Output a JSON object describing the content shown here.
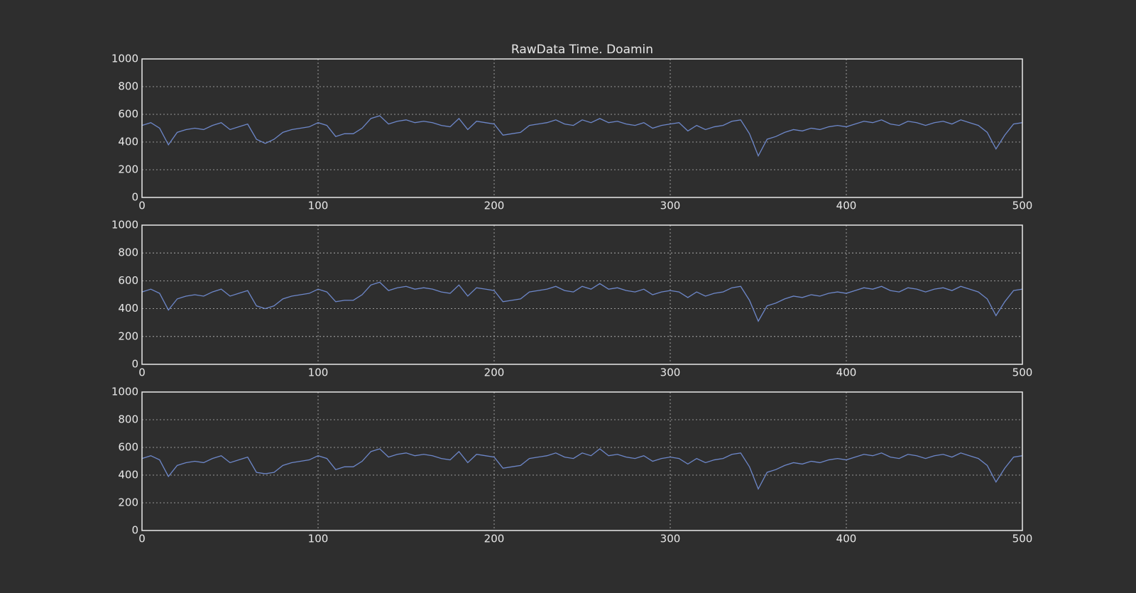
{
  "chart_data": [
    {
      "type": "line",
      "title": "RawData Time. Doamin",
      "color": "#6d87c9",
      "xlim": [
        0,
        500
      ],
      "ylim": [
        0,
        1000
      ],
      "xticks": [
        0,
        100,
        200,
        300,
        400,
        500
      ],
      "yticks": [
        0,
        200,
        400,
        600,
        800,
        1000
      ],
      "grid": true,
      "x": [
        0,
        5,
        10,
        15,
        20,
        25,
        30,
        35,
        40,
        45,
        50,
        55,
        60,
        65,
        70,
        75,
        80,
        85,
        90,
        95,
        100,
        105,
        110,
        115,
        120,
        125,
        130,
        135,
        140,
        145,
        150,
        155,
        160,
        165,
        170,
        175,
        180,
        185,
        190,
        195,
        200,
        205,
        210,
        215,
        220,
        225,
        230,
        235,
        240,
        245,
        250,
        255,
        260,
        265,
        270,
        275,
        280,
        285,
        290,
        295,
        300,
        305,
        310,
        315,
        320,
        325,
        330,
        335,
        340,
        345,
        350,
        355,
        360,
        365,
        370,
        375,
        380,
        385,
        390,
        395,
        400,
        405,
        410,
        415,
        420,
        425,
        430,
        435,
        440,
        445,
        450,
        455,
        460,
        465,
        470,
        475,
        480,
        485,
        490,
        495,
        500
      ],
      "values": [
        520,
        540,
        500,
        380,
        470,
        490,
        500,
        490,
        520,
        540,
        490,
        510,
        530,
        420,
        390,
        420,
        470,
        490,
        500,
        510,
        540,
        520,
        440,
        460,
        460,
        500,
        570,
        590,
        530,
        550,
        560,
        540,
        550,
        540,
        520,
        510,
        570,
        490,
        550,
        540,
        530,
        450,
        460,
        470,
        520,
        530,
        540,
        560,
        530,
        520,
        560,
        540,
        570,
        540,
        550,
        530,
        520,
        540,
        500,
        520,
        530,
        540,
        480,
        520,
        490,
        510,
        520,
        550,
        560,
        460,
        300,
        420,
        440,
        470,
        490,
        480,
        500,
        490,
        510,
        520,
        510,
        530,
        550,
        540,
        560,
        530,
        520,
        550,
        540,
        520,
        540,
        550,
        530,
        560,
        540,
        520,
        470,
        350,
        450,
        530,
        540
      ]
    },
    {
      "type": "line",
      "color": "#6d87c9",
      "xlim": [
        0,
        500
      ],
      "ylim": [
        0,
        1000
      ],
      "xticks": [
        0,
        100,
        200,
        300,
        400,
        500
      ],
      "yticks": [
        0,
        200,
        400,
        600,
        800,
        1000
      ],
      "grid": true,
      "x": [
        0,
        5,
        10,
        15,
        20,
        25,
        30,
        35,
        40,
        45,
        50,
        55,
        60,
        65,
        70,
        75,
        80,
        85,
        90,
        95,
        100,
        105,
        110,
        115,
        120,
        125,
        130,
        135,
        140,
        145,
        150,
        155,
        160,
        165,
        170,
        175,
        180,
        185,
        190,
        195,
        200,
        205,
        210,
        215,
        220,
        225,
        230,
        235,
        240,
        245,
        250,
        255,
        260,
        265,
        270,
        275,
        280,
        285,
        290,
        295,
        300,
        305,
        310,
        315,
        320,
        325,
        330,
        335,
        340,
        345,
        350,
        355,
        360,
        365,
        370,
        375,
        380,
        385,
        390,
        395,
        400,
        405,
        410,
        415,
        420,
        425,
        430,
        435,
        440,
        445,
        450,
        455,
        460,
        465,
        470,
        475,
        480,
        485,
        490,
        495,
        500
      ],
      "values": [
        520,
        540,
        510,
        390,
        470,
        490,
        500,
        490,
        520,
        540,
        490,
        510,
        530,
        420,
        400,
        420,
        470,
        490,
        500,
        510,
        540,
        520,
        450,
        460,
        460,
        500,
        570,
        590,
        530,
        550,
        560,
        540,
        550,
        540,
        520,
        510,
        570,
        490,
        550,
        540,
        530,
        450,
        460,
        470,
        520,
        530,
        540,
        560,
        530,
        520,
        560,
        540,
        580,
        540,
        550,
        530,
        520,
        540,
        500,
        520,
        530,
        520,
        480,
        520,
        490,
        510,
        520,
        550,
        560,
        460,
        310,
        420,
        440,
        470,
        490,
        480,
        500,
        490,
        510,
        520,
        510,
        530,
        550,
        540,
        560,
        530,
        520,
        550,
        540,
        520,
        540,
        550,
        530,
        560,
        540,
        520,
        470,
        350,
        450,
        530,
        540
      ]
    },
    {
      "type": "line",
      "color": "#6d87c9",
      "xlim": [
        0,
        500
      ],
      "ylim": [
        0,
        1000
      ],
      "xticks": [
        0,
        100,
        200,
        300,
        400,
        500
      ],
      "yticks": [
        0,
        200,
        400,
        600,
        800,
        1000
      ],
      "grid": true,
      "x": [
        0,
        5,
        10,
        15,
        20,
        25,
        30,
        35,
        40,
        45,
        50,
        55,
        60,
        65,
        70,
        75,
        80,
        85,
        90,
        95,
        100,
        105,
        110,
        115,
        120,
        125,
        130,
        135,
        140,
        145,
        150,
        155,
        160,
        165,
        170,
        175,
        180,
        185,
        190,
        195,
        200,
        205,
        210,
        215,
        220,
        225,
        230,
        235,
        240,
        245,
        250,
        255,
        260,
        265,
        270,
        275,
        280,
        285,
        290,
        295,
        300,
        305,
        310,
        315,
        320,
        325,
        330,
        335,
        340,
        345,
        350,
        355,
        360,
        365,
        370,
        375,
        380,
        385,
        390,
        395,
        400,
        405,
        410,
        415,
        420,
        425,
        430,
        435,
        440,
        445,
        450,
        455,
        460,
        465,
        470,
        475,
        480,
        485,
        490,
        495,
        500
      ],
      "values": [
        520,
        540,
        510,
        390,
        470,
        490,
        500,
        490,
        520,
        540,
        490,
        510,
        530,
        420,
        410,
        420,
        470,
        490,
        500,
        510,
        540,
        520,
        440,
        460,
        460,
        500,
        570,
        590,
        530,
        550,
        560,
        540,
        550,
        540,
        520,
        510,
        570,
        490,
        550,
        540,
        530,
        450,
        460,
        470,
        520,
        530,
        540,
        560,
        530,
        520,
        560,
        540,
        590,
        540,
        550,
        530,
        520,
        540,
        500,
        520,
        530,
        520,
        480,
        520,
        490,
        510,
        520,
        550,
        560,
        460,
        300,
        420,
        440,
        470,
        490,
        480,
        500,
        490,
        510,
        520,
        510,
        530,
        550,
        540,
        560,
        530,
        520,
        550,
        540,
        520,
        540,
        550,
        530,
        560,
        540,
        520,
        470,
        350,
        450,
        530,
        540
      ]
    }
  ]
}
